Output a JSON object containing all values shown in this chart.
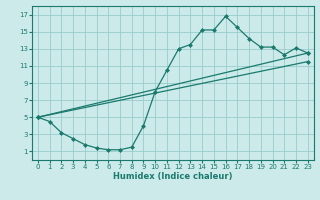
{
  "title": "",
  "xlabel": "Humidex (Indice chaleur)",
  "bg_color": "#cceaea",
  "line_color": "#1a7a6e",
  "grid_color": "#99cccc",
  "xlim": [
    -0.5,
    23.5
  ],
  "ylim": [
    0,
    18
  ],
  "xticks": [
    0,
    1,
    2,
    3,
    4,
    5,
    6,
    7,
    8,
    9,
    10,
    11,
    12,
    13,
    14,
    15,
    16,
    17,
    18,
    19,
    20,
    21,
    22,
    23
  ],
  "yticks": [
    1,
    3,
    5,
    7,
    9,
    11,
    13,
    15,
    17
  ],
  "line1_x": [
    0,
    1,
    2,
    3,
    4,
    5,
    6,
    7,
    8,
    9,
    10,
    11,
    12,
    13,
    14,
    15,
    16,
    17,
    18,
    19,
    20,
    21,
    22,
    23
  ],
  "line1_y": [
    5,
    4.5,
    3.2,
    2.5,
    1.8,
    1.4,
    1.2,
    1.2,
    1.5,
    4.0,
    8.0,
    10.5,
    13.0,
    13.5,
    15.2,
    15.2,
    16.8,
    15.5,
    14.2,
    13.2,
    13.2,
    12.3,
    13.1,
    12.5
  ],
  "line2_x": [
    0,
    23
  ],
  "line2_y": [
    5,
    12.5
  ],
  "line3_x": [
    0,
    23
  ],
  "line3_y": [
    5,
    11.5
  ],
  "marker": "D",
  "markersize": 2.0,
  "linewidth": 0.9
}
